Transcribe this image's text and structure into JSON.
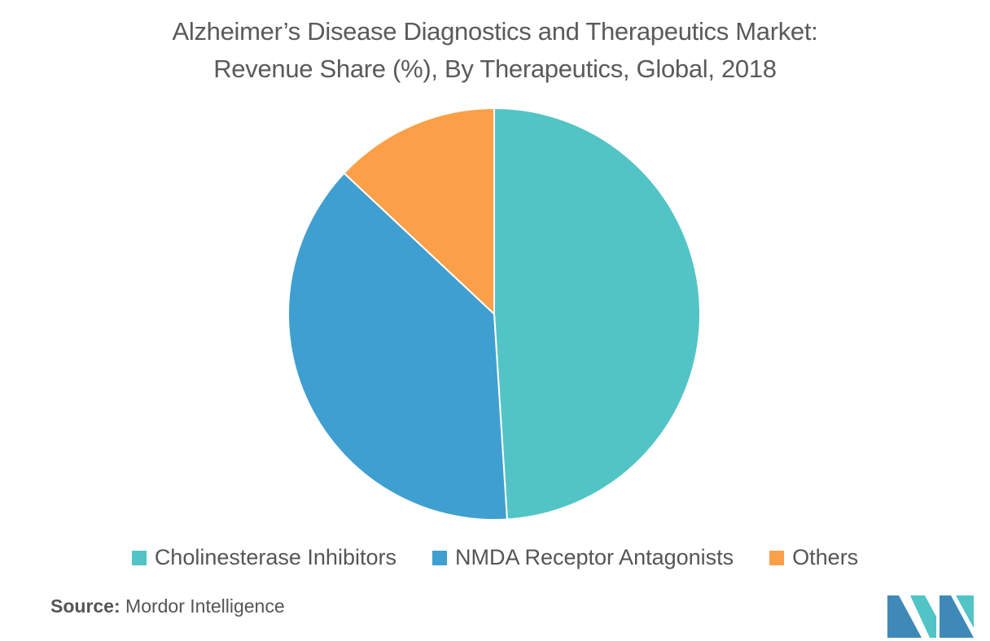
{
  "title": {
    "line1": "Alzheimer’s Disease Diagnostics and Therapeutics Market:",
    "line2": "Revenue Share (%), By Therapeutics, Global, 2018"
  },
  "chart_data": {
    "type": "pie",
    "title": "Alzheimer’s Disease Diagnostics and Therapeutics Market: Revenue Share (%), By Therapeutics, Global, 2018",
    "categories": [
      "Cholinesterase Inhibitors",
      "NMDA Receptor Antagonists",
      "Others"
    ],
    "values": [
      49,
      38,
      13
    ],
    "colors": [
      "#52c4c6",
      "#3f9fd0",
      "#fba048"
    ],
    "start_angle_deg": 0,
    "direction": "clockwise",
    "legend_position": "bottom"
  },
  "source": {
    "label": "Source:",
    "text": "Mordor Intelligence"
  },
  "logo": {
    "icon": "mordor-intelligence-logo",
    "colors": [
      "#3f89b8",
      "#52c4c6"
    ]
  }
}
